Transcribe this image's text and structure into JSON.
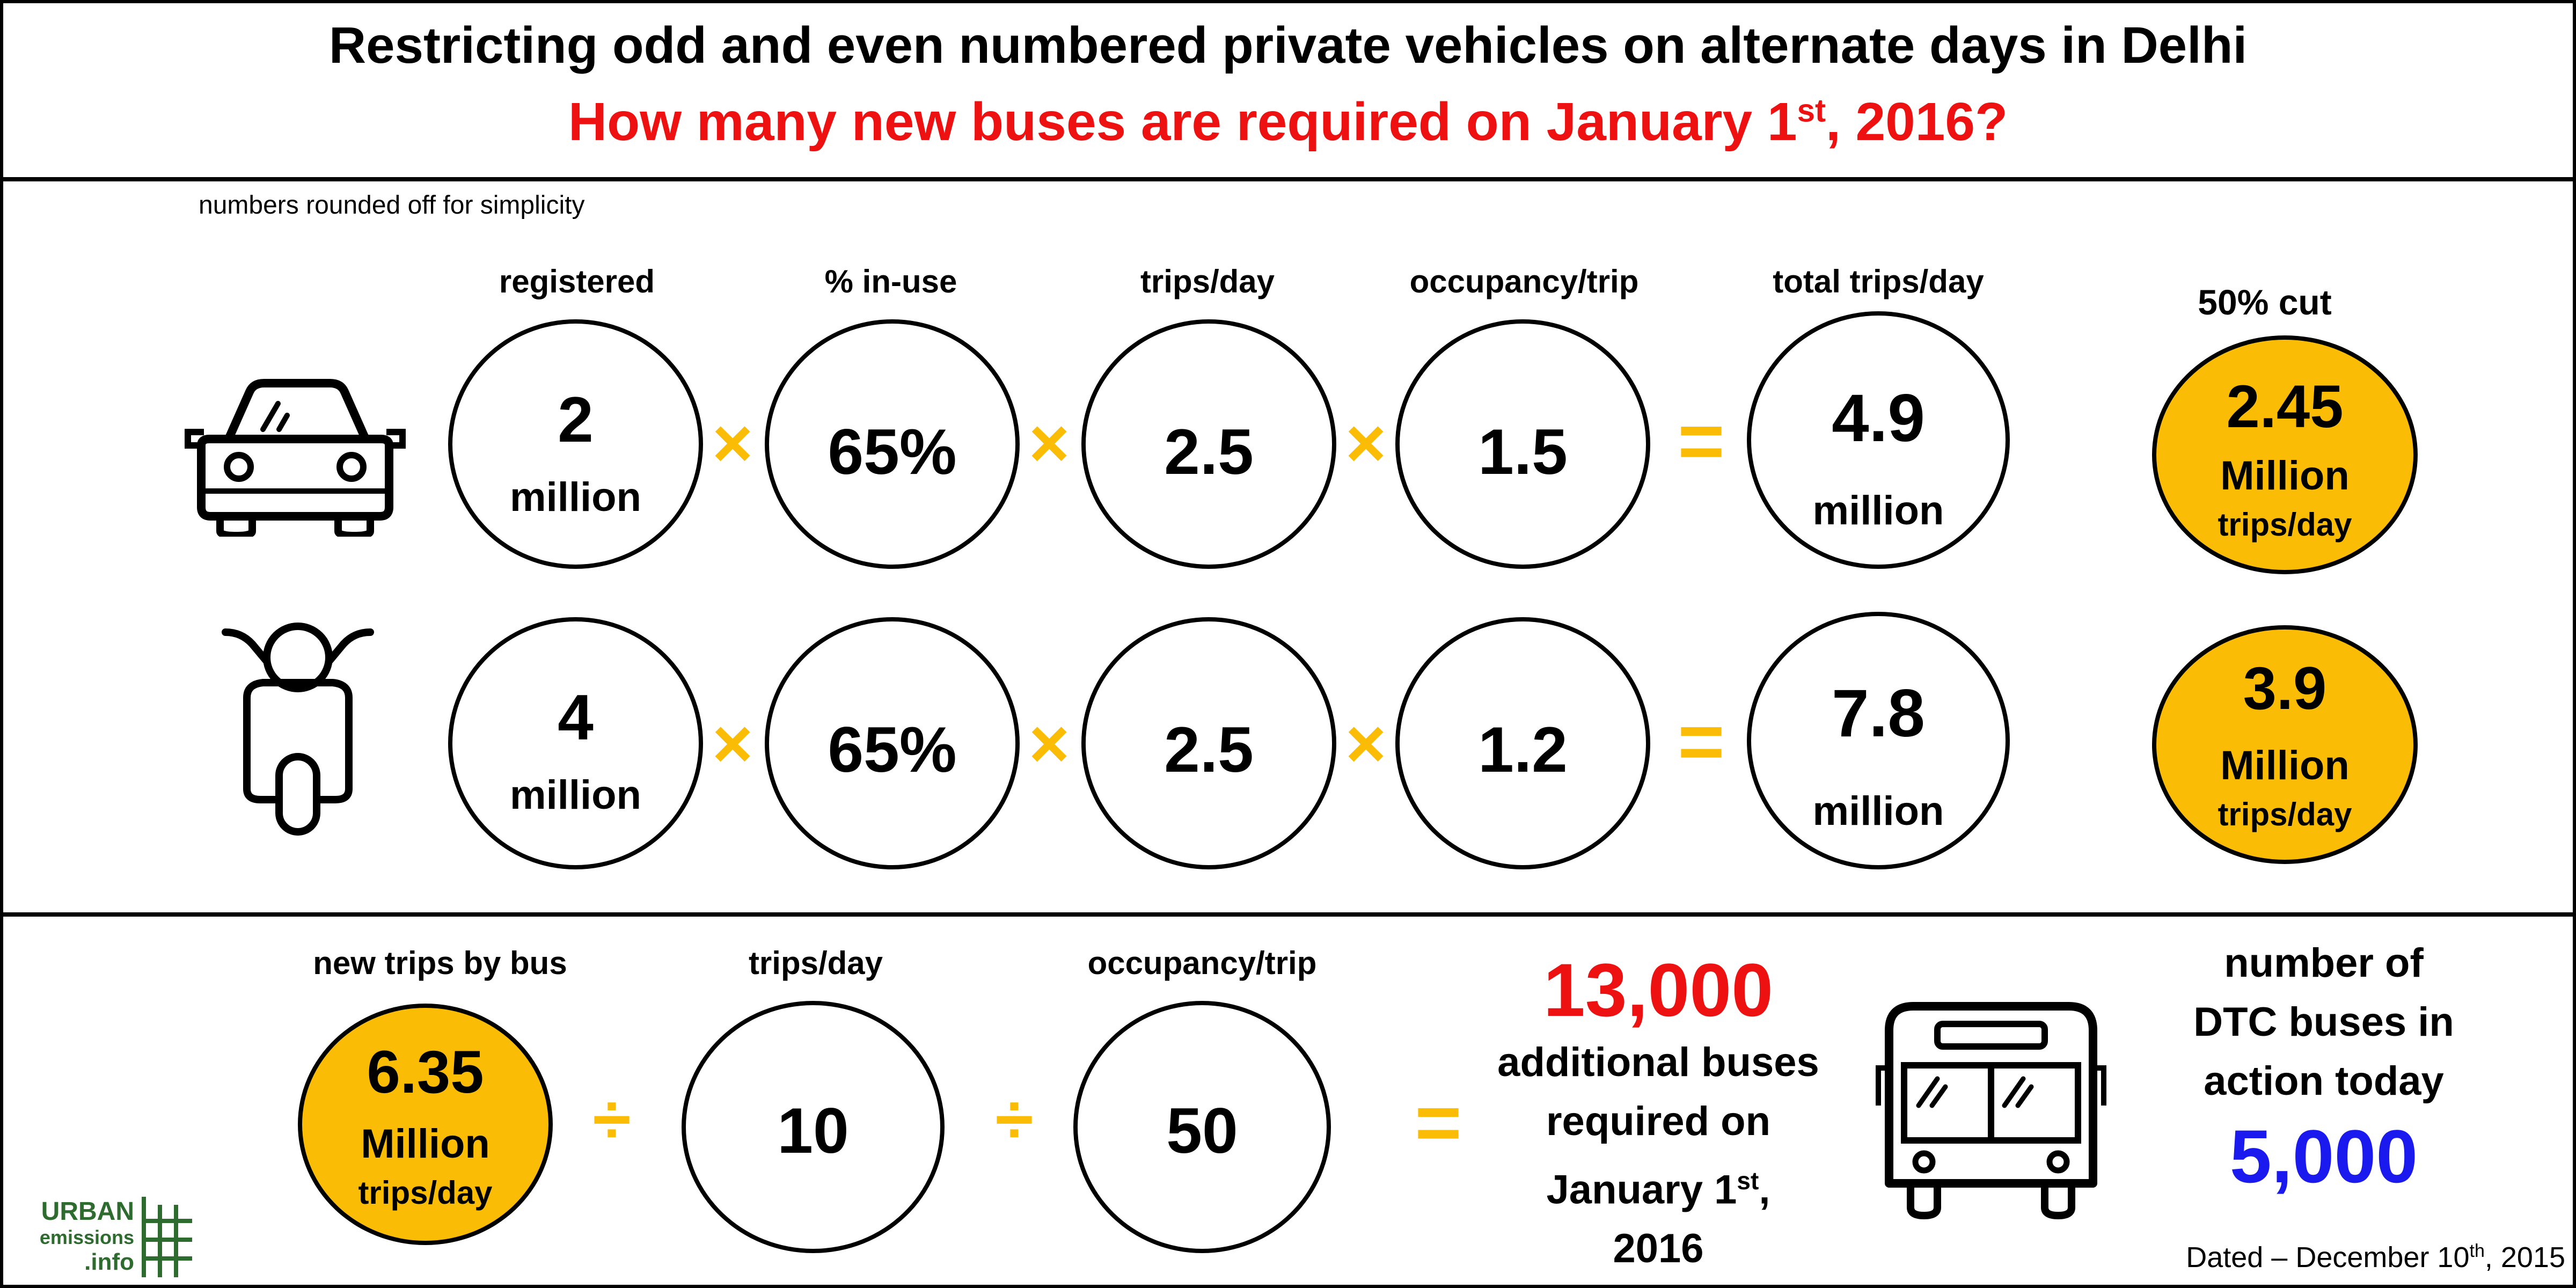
{
  "header": {
    "title": "Restricting odd and even numbered private vehicles on alternate days in Delhi",
    "question_prefix": "How many new buses are required on January 1",
    "question_sup": "st",
    "question_suffix": ", 2016?"
  },
  "note": "numbers rounded off for simplicity",
  "columns": {
    "registered": "registered",
    "in_use": "% in-use",
    "trips_per_day": "trips/day",
    "occupancy": "occupancy/trip",
    "total_trips": "total trips/day",
    "cut": "50% cut"
  },
  "operators": {
    "multiply": "×",
    "equals": "=",
    "divide": "÷"
  },
  "car_row": {
    "icon": "car-icon",
    "registered_value": "2",
    "registered_unit": "million",
    "in_use": "65%",
    "trips_per_day": "2.5",
    "occupancy": "1.5",
    "total_value": "4.9",
    "total_unit": "million",
    "cut_value": "2.45",
    "cut_unit": "Million",
    "cut_sub": "trips/day"
  },
  "scooter_row": {
    "icon": "scooter-icon",
    "registered_value": "4",
    "registered_unit": "million",
    "in_use": "65%",
    "trips_per_day": "2.5",
    "occupancy": "1.2",
    "total_value": "7.8",
    "total_unit": "million",
    "cut_value": "3.9",
    "cut_unit": "Million",
    "cut_sub": "trips/day"
  },
  "bus_row": {
    "label_new_trips": "new trips by bus",
    "label_trips_per_day": "trips/day",
    "label_occupancy": "occupancy/trip",
    "new_trips_value": "6.35",
    "new_trips_unit": "Million",
    "new_trips_sub": "trips/day",
    "trips_per_day": "10",
    "occupancy": "50",
    "result_value": "13,000",
    "result_line1": "additional buses",
    "result_line2": "required on",
    "result_line3_prefix": "January 1",
    "result_line3_sup": "st",
    "result_line3_suffix": ",",
    "result_line4": "2016",
    "bus_icon": "bus-icon"
  },
  "dtc": {
    "line1": "number of",
    "line2": "DTC buses in",
    "line3": "action today",
    "value": "5,000"
  },
  "logo": {
    "line1": "URBAN",
    "line2": "emissions",
    "line3": ".info"
  },
  "date": {
    "prefix": "Dated – December 10",
    "sup": "th",
    "suffix": ", 2015"
  },
  "colors": {
    "accent_gold": "#fbbc05",
    "question_red": "#ee1111",
    "result_red": "#ee1111",
    "dtc_blue": "#1a1aee",
    "logo_green": "#2e6b2e"
  }
}
